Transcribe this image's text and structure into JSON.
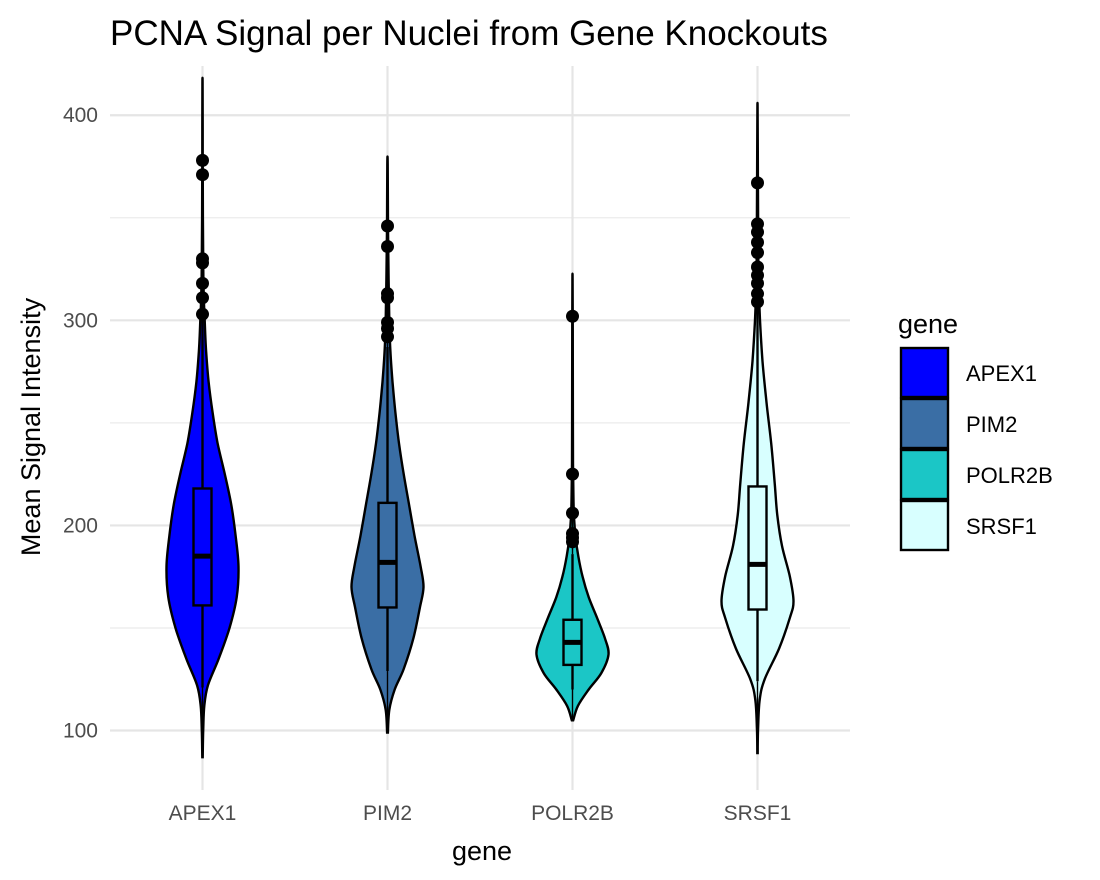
{
  "chart_data": {
    "type": "violin",
    "title": "PCNA Signal per Nuclei from Gene Knockouts",
    "xlabel": "gene",
    "ylabel": "Mean Signal Intensity",
    "ylim": [
      71,
      424
    ],
    "yticks": [
      100,
      200,
      300,
      400
    ],
    "grid": true,
    "legend": {
      "title": "gene",
      "position": "right"
    },
    "categories": [
      "APEX1",
      "PIM2",
      "POLR2B",
      "SRSF1"
    ],
    "series": [
      {
        "name": "APEX1",
        "color": "#0000ff",
        "min": 87,
        "max": 414,
        "box": {
          "q1": 161,
          "median": 185,
          "q3": 218,
          "whisker_low": 121,
          "whisker_high": 302
        },
        "outliers": [
          303,
          311,
          318,
          328,
          330,
          371,
          378
        ],
        "density": [
          [
            87,
            0.005
          ],
          [
            100,
            0.02
          ],
          [
            112,
            0.05
          ],
          [
            122,
            0.15
          ],
          [
            135,
            0.45
          ],
          [
            150,
            0.75
          ],
          [
            165,
            0.95
          ],
          [
            180,
            1.0
          ],
          [
            195,
            0.92
          ],
          [
            210,
            0.8
          ],
          [
            225,
            0.62
          ],
          [
            240,
            0.42
          ],
          [
            255,
            0.28
          ],
          [
            270,
            0.17
          ],
          [
            285,
            0.1
          ],
          [
            300,
            0.06
          ],
          [
            315,
            0.03
          ],
          [
            330,
            0.02
          ],
          [
            350,
            0.01
          ],
          [
            380,
            0.006
          ],
          [
            414,
            0.004
          ]
        ]
      },
      {
        "name": "PIM2",
        "color": "#3a6ea5",
        "min": 99,
        "max": 376,
        "box": {
          "q1": 160,
          "median": 182,
          "q3": 211,
          "whisker_low": 129,
          "whisker_high": 287
        },
        "outliers": [
          292,
          296,
          299,
          311,
          313,
          336,
          346
        ],
        "density": [
          [
            99,
            0.01
          ],
          [
            110,
            0.05
          ],
          [
            120,
            0.2
          ],
          [
            130,
            0.45
          ],
          [
            145,
            0.72
          ],
          [
            160,
            0.9
          ],
          [
            170,
            1.0
          ],
          [
            180,
            0.92
          ],
          [
            195,
            0.75
          ],
          [
            210,
            0.6
          ],
          [
            225,
            0.45
          ],
          [
            240,
            0.32
          ],
          [
            255,
            0.22
          ],
          [
            270,
            0.14
          ],
          [
            285,
            0.08
          ],
          [
            300,
            0.05
          ],
          [
            320,
            0.03
          ],
          [
            345,
            0.015
          ],
          [
            376,
            0.006
          ]
        ]
      },
      {
        "name": "POLR2B",
        "color": "#1bc6c6",
        "min": 105,
        "max": 318,
        "box": {
          "q1": 132,
          "median": 143,
          "q3": 154,
          "whisker_low": 120,
          "whisker_high": 186
        },
        "outliers": [
          192,
          194,
          196,
          206,
          225,
          302
        ],
        "density": [
          [
            105,
            0.02
          ],
          [
            112,
            0.15
          ],
          [
            120,
            0.45
          ],
          [
            128,
            0.8
          ],
          [
            137,
            1.0
          ],
          [
            145,
            0.9
          ],
          [
            155,
            0.68
          ],
          [
            165,
            0.45
          ],
          [
            175,
            0.28
          ],
          [
            185,
            0.16
          ],
          [
            195,
            0.08
          ],
          [
            205,
            0.04
          ],
          [
            215,
            0.025
          ],
          [
            230,
            0.015
          ],
          [
            250,
            0.01
          ],
          [
            280,
            0.008
          ],
          [
            318,
            0.004
          ]
        ]
      },
      {
        "name": "SRSF1",
        "color": "#d8ffff",
        "min": 89,
        "max": 402,
        "box": {
          "q1": 159,
          "median": 181,
          "q3": 219,
          "whisker_low": 124,
          "whisker_high": 307
        },
        "outliers": [
          309,
          313,
          318,
          322,
          326,
          333,
          338,
          343,
          347,
          367
        ],
        "density": [
          [
            89,
            0.005
          ],
          [
            100,
            0.015
          ],
          [
            115,
            0.06
          ],
          [
            125,
            0.2
          ],
          [
            140,
            0.6
          ],
          [
            155,
            0.9
          ],
          [
            163,
            1.0
          ],
          [
            175,
            0.9
          ],
          [
            190,
            0.68
          ],
          [
            205,
            0.55
          ],
          [
            220,
            0.48
          ],
          [
            240,
            0.38
          ],
          [
            260,
            0.25
          ],
          [
            280,
            0.14
          ],
          [
            300,
            0.07
          ],
          [
            320,
            0.03
          ],
          [
            340,
            0.02
          ],
          [
            370,
            0.01
          ],
          [
            402,
            0.004
          ]
        ]
      }
    ]
  }
}
